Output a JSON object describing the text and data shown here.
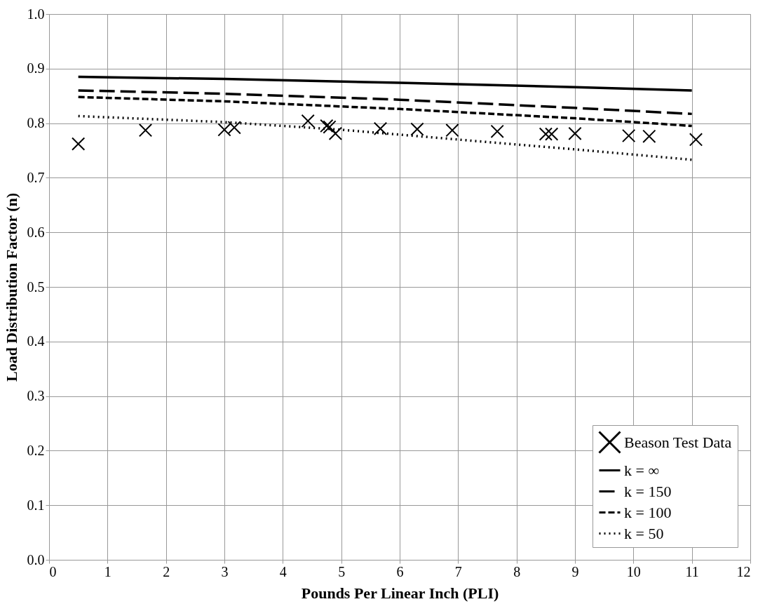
{
  "chart_data": {
    "type": "line",
    "xlabel": "Pounds Per Linear Inch (PLI)",
    "ylabel": "Load Distribution Factor (n)",
    "xlim": [
      0,
      12
    ],
    "ylim": [
      0.0,
      1.0
    ],
    "xticks": [
      0,
      1,
      2,
      3,
      4,
      5,
      6,
      7,
      8,
      9,
      10,
      11,
      12
    ],
    "yticks": [
      {
        "value": 0,
        "label": "0.0"
      },
      0.1,
      0.2,
      0.3,
      0.4,
      0.5,
      0.6,
      0.7,
      0.8,
      0.9,
      {
        "value": 1,
        "label": "1.0"
      }
    ],
    "grid": true,
    "legend": "bottom right",
    "series": [
      {
        "name": "Beason Test Data",
        "type": "scatter",
        "marker": "cross",
        "color": "#000000",
        "x": [
          0.5,
          1.65,
          3.0,
          3.17,
          4.43,
          4.75,
          4.8,
          4.9,
          5.67,
          6.3,
          6.9,
          7.67,
          8.5,
          8.6,
          9.0,
          9.92,
          10.27,
          11.07
        ],
        "values": [
          0.762,
          0.787,
          0.788,
          0.792,
          0.804,
          0.795,
          0.793,
          0.781,
          0.79,
          0.789,
          0.787,
          0.785,
          0.78,
          0.78,
          0.781,
          0.777,
          0.776,
          0.77
        ]
      },
      {
        "name": "k = ∞",
        "line_style": "solid",
        "color": "#000000",
        "x": [
          0.5,
          3,
          6,
          9,
          11
        ],
        "values": [
          0.885,
          0.881,
          0.874,
          0.866,
          0.86
        ]
      },
      {
        "name": "k = 150",
        "line_style": "dashed",
        "color": "#000000",
        "x": [
          0.5,
          3,
          6,
          9,
          11
        ],
        "values": [
          0.86,
          0.854,
          0.843,
          0.828,
          0.817
        ]
      },
      {
        "name": "k = 100",
        "line_style": "dashed",
        "color": "#000000",
        "x": [
          0.5,
          3,
          6,
          9,
          11
        ],
        "values": [
          0.848,
          0.84,
          0.826,
          0.809,
          0.795
        ]
      },
      {
        "name": "k = 50",
        "line_style": "dotted",
        "color": "#000000",
        "x": [
          0.5,
          3,
          5,
          7,
          9,
          11
        ],
        "values": [
          0.813,
          0.802,
          0.788,
          0.77,
          0.752,
          0.733
        ]
      }
    ]
  }
}
